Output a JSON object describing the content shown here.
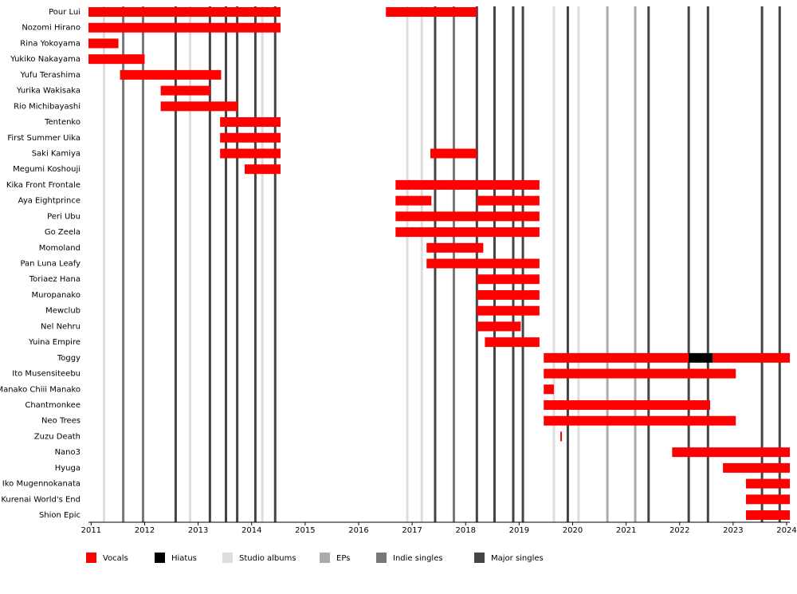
{
  "chart_data": {
    "type": "timeline",
    "categories": [
      "Pour Lui",
      "Nozomi Hirano",
      "Rina Yokoyama",
      "Yukiko Nakayama",
      "Yufu Terashima",
      "Yurika Wakisaka",
      "Rio Michibayashi",
      "Tentenko",
      "First Summer Uika",
      "Saki Kamiya",
      "Megumi Koshouji",
      "Kika Front Frontale",
      "Aya Eightprince",
      "Peri Ubu",
      "Go Zeela",
      "Momoland",
      "Pan Luna Leafy",
      "Toriaez Hana",
      "Muropanako",
      "Mewclub",
      "Nel Nehru",
      "Yuina Empire",
      "Toggy",
      "Ito Musensiteebu",
      "Manako Chiii Manako",
      "Chantmonkee",
      "Neo Trees",
      "Zuzu Death",
      "Nano3",
      "Hyuga",
      "Iko Mugennokanata",
      "Kurenai World's End",
      "Shion Epic"
    ],
    "series": [
      {
        "name": "Vocals",
        "color": "#ff0000",
        "ranges": [
          [
            [
              2010.95,
              2014.54
            ],
            [
              2016.51,
              2018.21
            ]
          ],
          [
            [
              2010.95,
              2014.54
            ]
          ],
          [
            [
              2010.95,
              2011.51
            ]
          ],
          [
            [
              2010.95,
              2012.0
            ]
          ],
          [
            [
              2011.54,
              2013.43
            ]
          ],
          [
            [
              2012.3,
              2013.23
            ]
          ],
          [
            [
              2012.3,
              2013.74
            ]
          ],
          [
            [
              2013.41,
              2014.54
            ]
          ],
          [
            [
              2013.41,
              2014.54
            ]
          ],
          [
            [
              2013.41,
              2014.54
            ],
            [
              2017.34,
              2018.21
            ]
          ],
          [
            [
              2013.87,
              2014.54
            ]
          ],
          [
            [
              2016.69,
              2019.38
            ]
          ],
          [
            [
              2016.69,
              2017.36
            ],
            [
              2018.21,
              2019.38
            ]
          ],
          [
            [
              2016.69,
              2019.38
            ]
          ],
          [
            [
              2016.69,
              2019.38
            ]
          ],
          [
            [
              2017.27,
              2018.33
            ]
          ],
          [
            [
              2017.27,
              2019.38
            ]
          ],
          [
            [
              2018.21,
              2019.38
            ]
          ],
          [
            [
              2018.21,
              2019.38
            ]
          ],
          [
            [
              2018.21,
              2019.38
            ]
          ],
          [
            [
              2018.21,
              2019.03
            ]
          ],
          [
            [
              2018.36,
              2019.38
            ]
          ],
          [
            [
              2019.46,
              2022.17
            ],
            [
              2022.62,
              2024.06
            ]
          ],
          [
            [
              2019.46,
              2023.05
            ]
          ],
          [
            [
              2019.46,
              2019.65
            ]
          ],
          [
            [
              2019.46,
              2022.57
            ]
          ],
          [
            [
              2019.46,
              2023.05
            ]
          ],
          [
            [
              2019.77,
              2019.8
            ]
          ],
          [
            [
              2021.86,
              2024.06
            ]
          ],
          [
            [
              2022.81,
              2024.06
            ]
          ],
          [
            [
              2023.24,
              2024.06
            ]
          ],
          [
            [
              2023.24,
              2024.06
            ]
          ],
          [
            [
              2023.24,
              2024.06
            ]
          ]
        ]
      },
      {
        "name": "Hiatus",
        "color": "#000000",
        "ranges": [
          [],
          [],
          [],
          [],
          [],
          [],
          [],
          [],
          [],
          [],
          [],
          [],
          [],
          [],
          [],
          [],
          [],
          [],
          [],
          [],
          [],
          [],
          [
            [
              2022.17,
              2022.62
            ]
          ],
          [],
          [],
          [],
          [],
          [],
          [],
          [],
          [],
          [],
          []
        ]
      }
    ],
    "releases": [
      {
        "name": "Studio albums",
        "color": "#dddddd",
        "x": [
          2011.24,
          2012.85,
          2014.2,
          2016.91,
          2017.18,
          2019.65,
          2020.11
        ]
      },
      {
        "name": "EPs",
        "color": "#aaaaaa",
        "x": [
          2020.65,
          2021.17
        ]
      },
      {
        "name": "Indie singles",
        "color": "#777777",
        "x": [
          2011.6,
          2011.97,
          2017.78
        ]
      },
      {
        "name": "Major singles",
        "color": "#444444",
        "x": [
          2012.58,
          2013.22,
          2013.52,
          2013.73,
          2014.07,
          2014.44,
          2017.43,
          2018.21,
          2018.54,
          2018.89,
          2019.07,
          2019.91,
          2021.42,
          2022.17,
          2022.53,
          2023.54,
          2023.87
        ]
      }
    ],
    "xlim": [
      2010.95,
      2024.06
    ],
    "xticks": [
      2011,
      2012,
      2013,
      2014,
      2015,
      2016,
      2017,
      2018,
      2019,
      2020,
      2021,
      2022,
      2023,
      2024
    ]
  }
}
